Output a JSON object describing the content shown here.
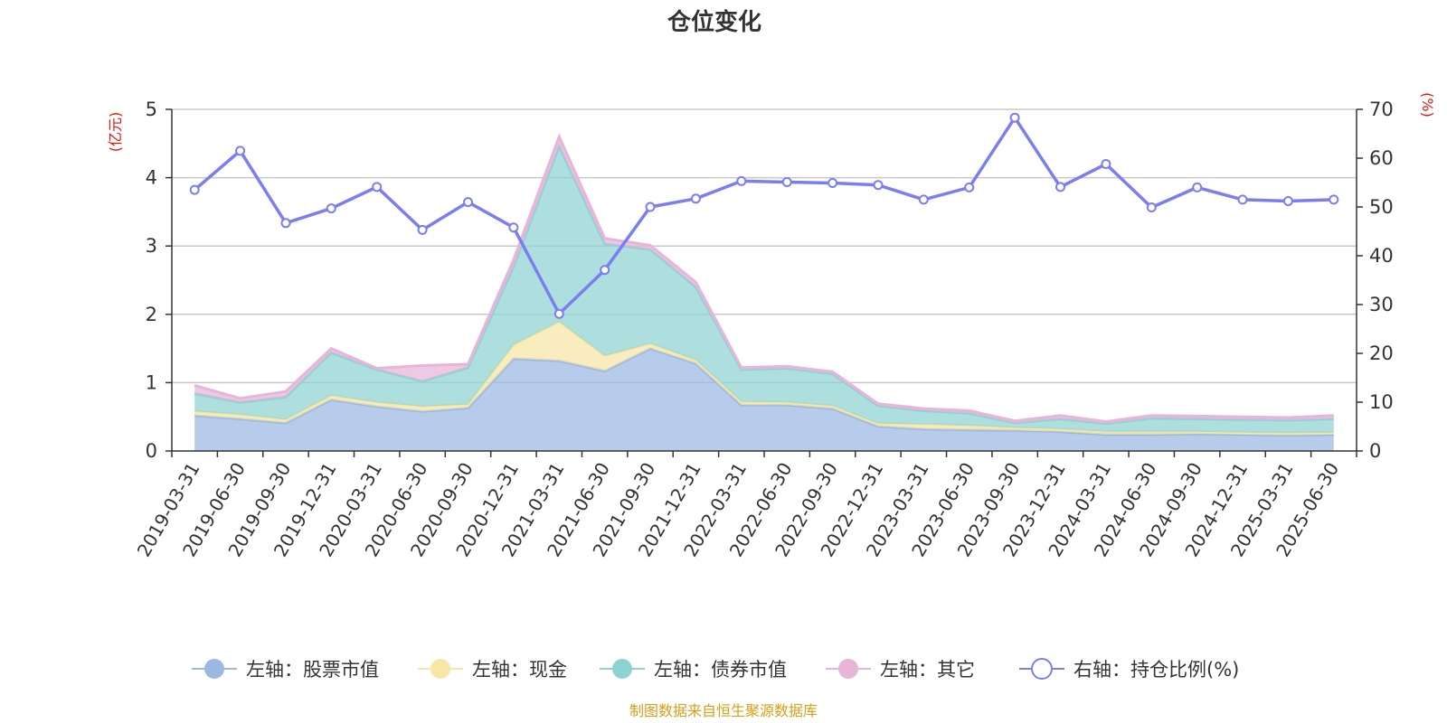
{
  "chart_data": {
    "type": "area",
    "title": "仓位变化",
    "left_unit": "(亿元)",
    "right_unit": "(%)",
    "categories": [
      "2019-03-31",
      "2019-06-30",
      "2019-09-30",
      "2019-12-31",
      "2020-03-31",
      "2020-06-30",
      "2020-09-30",
      "2020-12-31",
      "2021-03-31",
      "2021-06-30",
      "2021-09-30",
      "2021-12-31",
      "2022-03-31",
      "2022-06-30",
      "2022-09-30",
      "2022-12-31",
      "2023-03-31",
      "2023-06-30",
      "2023-09-30",
      "2023-12-31",
      "2024-03-31",
      "2024-06-30",
      "2024-09-30",
      "2024-12-31",
      "2025-03-31",
      "2025-06-30"
    ],
    "left_axis": {
      "min": 0,
      "max": 5,
      "ticks": [
        "0",
        "1",
        "2",
        "3",
        "4",
        "5"
      ]
    },
    "right_axis": {
      "min": 0,
      "max": 70,
      "ticks": [
        "0",
        "10",
        "20",
        "30",
        "40",
        "50",
        "60",
        "70"
      ]
    },
    "grid": true,
    "legend_position": "bottom",
    "series": [
      {
        "name": "左轴：股票市值",
        "axis": "left",
        "stack": "total",
        "color": "#9bb8e3",
        "values": [
          0.52,
          0.47,
          0.41,
          0.75,
          0.65,
          0.58,
          0.63,
          1.35,
          1.32,
          1.17,
          1.5,
          1.28,
          0.67,
          0.67,
          0.62,
          0.36,
          0.32,
          0.31,
          0.3,
          0.28,
          0.24,
          0.24,
          0.25,
          0.24,
          0.23,
          0.24
        ]
      },
      {
        "name": "左轴：现金",
        "axis": "left",
        "stack": "total",
        "color": "#f7e6a6",
        "values": [
          0.06,
          0.06,
          0.05,
          0.06,
          0.06,
          0.07,
          0.05,
          0.2,
          0.57,
          0.22,
          0.07,
          0.05,
          0.05,
          0.04,
          0.04,
          0.04,
          0.07,
          0.06,
          0.04,
          0.04,
          0.04,
          0.04,
          0.03,
          0.03,
          0.03,
          0.03
        ]
      },
      {
        "name": "左轴：债券市值",
        "axis": "left",
        "stack": "total",
        "color": "#8fd2d3",
        "values": [
          0.26,
          0.18,
          0.33,
          0.63,
          0.48,
          0.37,
          0.54,
          1.15,
          2.57,
          1.64,
          1.38,
          1.07,
          0.47,
          0.5,
          0.47,
          0.26,
          0.2,
          0.18,
          0.07,
          0.15,
          0.12,
          0.2,
          0.19,
          0.19,
          0.19,
          0.2
        ]
      },
      {
        "name": "左轴：其它",
        "axis": "left",
        "stack": "total",
        "color": "#e8b4d8",
        "values": [
          0.12,
          0.06,
          0.08,
          0.06,
          0.02,
          0.23,
          0.05,
          0.1,
          0.14,
          0.08,
          0.06,
          0.07,
          0.03,
          0.03,
          0.03,
          0.03,
          0.03,
          0.04,
          0.03,
          0.05,
          0.03,
          0.04,
          0.04,
          0.04,
          0.04,
          0.05
        ]
      },
      {
        "name": "右轴：持仓比例(%)",
        "axis": "right",
        "color": "#7a7ef0",
        "values": [
          53.5,
          61.5,
          46.7,
          49.7,
          54.1,
          45.3,
          51.0,
          45.8,
          28.1,
          37.1,
          50.0,
          51.7,
          55.3,
          55.1,
          54.9,
          54.5,
          51.5,
          54.0,
          68.3,
          54.1,
          58.8,
          49.9,
          54.0,
          51.5,
          51.2,
          51.5
        ]
      }
    ],
    "source_note": "制图数据来自恒生聚源数据库"
  }
}
